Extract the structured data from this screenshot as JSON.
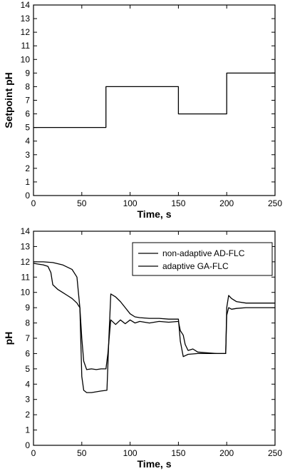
{
  "chart_data": [
    {
      "type": "line",
      "title": "",
      "xlabel": "Time, s",
      "ylabel": "Setpoint pH",
      "xlim": [
        0,
        250
      ],
      "ylim": [
        0,
        14
      ],
      "x_ticks": [
        0,
        50,
        100,
        150,
        200,
        250
      ],
      "y_ticks": [
        0,
        1,
        2,
        3,
        4,
        5,
        6,
        7,
        8,
        9,
        10,
        11,
        12,
        13,
        14
      ],
      "grid": false,
      "legend": "none",
      "series": [
        {
          "name": "",
          "step": true,
          "x": [
            0,
            75,
            75,
            150,
            150,
            200,
            200,
            250
          ],
          "y": [
            5,
            5,
            8,
            8,
            6,
            6,
            9,
            9
          ]
        }
      ]
    },
    {
      "type": "line",
      "title": "",
      "xlabel": "Time, s",
      "ylabel": "pH",
      "xlim": [
        0,
        250
      ],
      "ylim": [
        0,
        14
      ],
      "x_ticks": [
        0,
        50,
        100,
        150,
        200,
        250
      ],
      "y_ticks": [
        0,
        1,
        2,
        3,
        4,
        5,
        6,
        7,
        8,
        9,
        10,
        11,
        12,
        13,
        14
      ],
      "grid": false,
      "legend": "top-right",
      "series": [
        {
          "name": "non-adaptive AD-FLC",
          "x": [
            0,
            10,
            20,
            30,
            40,
            45,
            48,
            50,
            52,
            55,
            60,
            65,
            70,
            76,
            78,
            80,
            85,
            90,
            95,
            100,
            105,
            110,
            120,
            130,
            140,
            150,
            152,
            155,
            160,
            170,
            180,
            190,
            199,
            200,
            202,
            205,
            210,
            220,
            230,
            240,
            250
          ],
          "y": [
            12.0,
            12.0,
            11.95,
            11.8,
            11.5,
            11.0,
            9.0,
            4.5,
            3.6,
            3.45,
            3.45,
            3.5,
            3.55,
            3.6,
            7.0,
            9.9,
            9.7,
            9.4,
            9.0,
            8.6,
            8.4,
            8.35,
            8.3,
            8.3,
            8.25,
            8.25,
            6.8,
            5.8,
            5.95,
            6.0,
            6.0,
            6.0,
            6.0,
            9.0,
            9.8,
            9.6,
            9.4,
            9.3,
            9.3,
            9.3,
            9.3
          ]
        },
        {
          "name": "adaptive GA-FLC",
          "x": [
            0,
            5,
            10,
            15,
            18,
            20,
            25,
            30,
            35,
            40,
            45,
            48,
            50,
            52,
            55,
            60,
            65,
            70,
            75,
            77,
            79,
            80,
            85,
            90,
            95,
            100,
            105,
            110,
            120,
            130,
            140,
            150,
            152,
            155,
            157,
            160,
            165,
            170,
            180,
            190,
            199,
            200,
            202,
            205,
            210,
            220,
            230,
            240,
            250
          ],
          "y": [
            11.9,
            11.85,
            11.8,
            11.7,
            11.3,
            10.5,
            10.2,
            10.0,
            9.8,
            9.6,
            9.3,
            9.0,
            7.0,
            5.5,
            4.95,
            5.0,
            4.95,
            5.0,
            5.0,
            6.0,
            7.5,
            8.2,
            7.9,
            8.2,
            7.95,
            8.2,
            8.0,
            8.1,
            8.0,
            8.1,
            8.05,
            8.1,
            7.5,
            7.2,
            6.6,
            6.2,
            6.3,
            6.1,
            6.05,
            6.0,
            6.0,
            8.5,
            9.0,
            8.9,
            8.95,
            9.0,
            9.0,
            9.0,
            9.0
          ]
        }
      ]
    }
  ]
}
